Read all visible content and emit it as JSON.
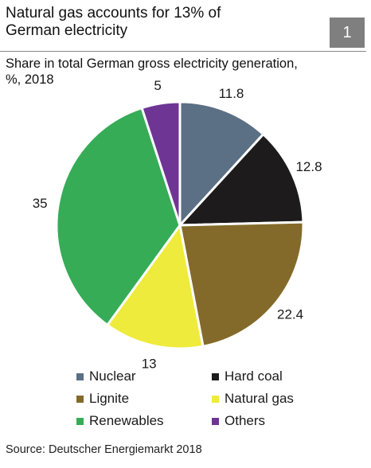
{
  "header": {
    "title_line1": "Natural gas accounts for 13% of",
    "title_line2": "German electricity",
    "badge": "1",
    "badge_color": "#7f7f7f"
  },
  "chart_data": {
    "type": "pie",
    "subtitle_line1": "Share in total German gross electricity generation,",
    "subtitle_line2": "%, 2018",
    "categories": [
      "Nuclear",
      "Hard coal",
      "Lignite",
      "Natural gas",
      "Renewables",
      "Others"
    ],
    "values": [
      11.8,
      12.8,
      22.4,
      13,
      35,
      5
    ],
    "value_labels": [
      "11.8",
      "12.8",
      "22.4",
      "13",
      "35",
      "5"
    ],
    "colors": [
      "#5b6f85",
      "#1d1b1c",
      "#846a2a",
      "#eeeb3c",
      "#36ac57",
      "#6e3595"
    ],
    "start_angle": "12 o'clock",
    "direction": "clockwise",
    "legend_position": "bottom"
  },
  "footer": {
    "source": "Source: Deutscher Energiemarkt 2018"
  }
}
